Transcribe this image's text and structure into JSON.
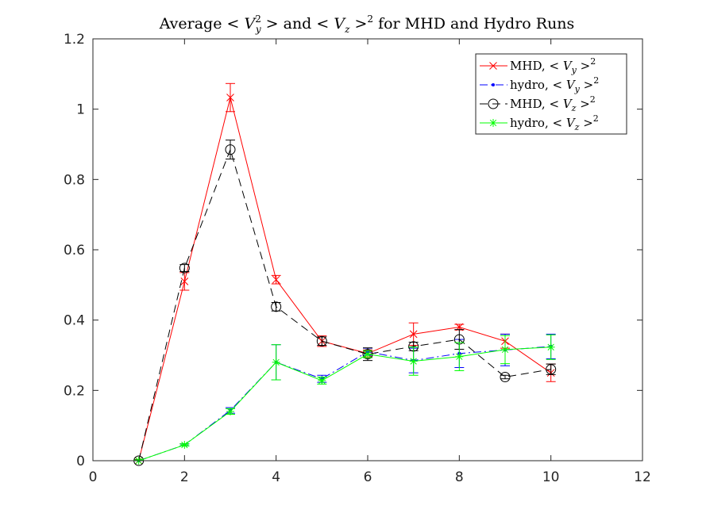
{
  "chart_data": {
    "type": "line",
    "title": "Average < V_y^2 > and < V_z >^2 for MHD and Hydro Runs",
    "title_parts": {
      "t1": "Average <",
      "v1": "V",
      "sub1": "y",
      "sup1": "2",
      "t2": "> and <",
      "v2": "V",
      "sub2": "z",
      "t3": ">",
      "sup2": "2",
      "t4": "for MHD and Hydro Runs"
    },
    "xlabel": "",
    "ylabel": "",
    "xlim": [
      0,
      12
    ],
    "ylim": [
      0,
      1.2
    ],
    "x_ticks": [
      0,
      2,
      4,
      6,
      8,
      10,
      12
    ],
    "y_ticks": [
      0,
      0.2,
      0.4,
      0.6,
      0.8,
      1,
      1.2
    ],
    "x_tick_labels": [
      "0",
      "2",
      "4",
      "6",
      "8",
      "10",
      "12"
    ],
    "y_tick_labels": [
      "0",
      "0.2",
      "0.4",
      "0.6",
      "0.8",
      "1",
      "1.2"
    ],
    "grid": false,
    "legend_position": "top-right",
    "series": [
      {
        "name": "MHD, < V_y >^2",
        "legend": {
          "prefix": "MHD, <",
          "v": "V",
          "sub": "y",
          "suffix": ">",
          "sup": "2"
        },
        "color": "#ff0000",
        "dash": "solid",
        "marker": "x",
        "x": [
          1,
          2,
          3,
          4,
          5,
          6,
          7,
          8,
          9,
          10
        ],
        "y": [
          0.0,
          0.51,
          1.033,
          0.515,
          0.34,
          0.305,
          0.36,
          0.38,
          0.34,
          0.25
        ],
        "err": [
          0.003,
          0.025,
          0.04,
          0.012,
          0.015,
          0.01,
          0.032,
          0.008,
          0.02,
          0.025
        ]
      },
      {
        "name": "hydro, < V_y >^2",
        "legend": {
          "prefix": "hydro, <",
          "v": "V",
          "sub": "y",
          "suffix": ">",
          "sup": "2"
        },
        "color": "#0000ff",
        "dash": "dashdot",
        "marker": "dot",
        "x": [
          1,
          2,
          3,
          4,
          5,
          6,
          7,
          8,
          9,
          10
        ],
        "y": [
          0.0,
          0.045,
          0.143,
          0.28,
          0.233,
          0.31,
          0.285,
          0.305,
          0.315,
          0.325
        ],
        "err": [
          0.002,
          0.003,
          0.008,
          0.05,
          0.01,
          0.01,
          0.035,
          0.04,
          0.045,
          0.035
        ]
      },
      {
        "name": "MHD, < V_z >^2",
        "legend": {
          "prefix": "MHD, <",
          "v": "V",
          "sub": "z",
          "suffix": ">",
          "sup": "2"
        },
        "color": "#000000",
        "dash": "dashed",
        "marker": "circle",
        "x": [
          1,
          2,
          3,
          4,
          5,
          6,
          7,
          8,
          9,
          10
        ],
        "y": [
          0.0,
          0.548,
          0.885,
          0.438,
          0.34,
          0.303,
          0.325,
          0.345,
          0.238,
          0.26
        ],
        "err": [
          0.003,
          0.01,
          0.027,
          0.012,
          0.012,
          0.018,
          0.012,
          0.028,
          0.005,
          0.015
        ]
      },
      {
        "name": "hydro, < V_z >^2",
        "legend": {
          "prefix": "hydro, <",
          "v": "V",
          "sub": "z",
          "suffix": ">",
          "sup": "2"
        },
        "color": "#00ff00",
        "dash": "solid",
        "marker": "star",
        "x": [
          1,
          2,
          3,
          4,
          5,
          6,
          7,
          8,
          9,
          10
        ],
        "y": [
          0.0,
          0.045,
          0.14,
          0.28,
          0.228,
          0.303,
          0.283,
          0.296,
          0.316,
          0.323
        ],
        "err": [
          0.002,
          0.003,
          0.008,
          0.05,
          0.01,
          0.01,
          0.04,
          0.04,
          0.04,
          0.035
        ]
      }
    ]
  }
}
